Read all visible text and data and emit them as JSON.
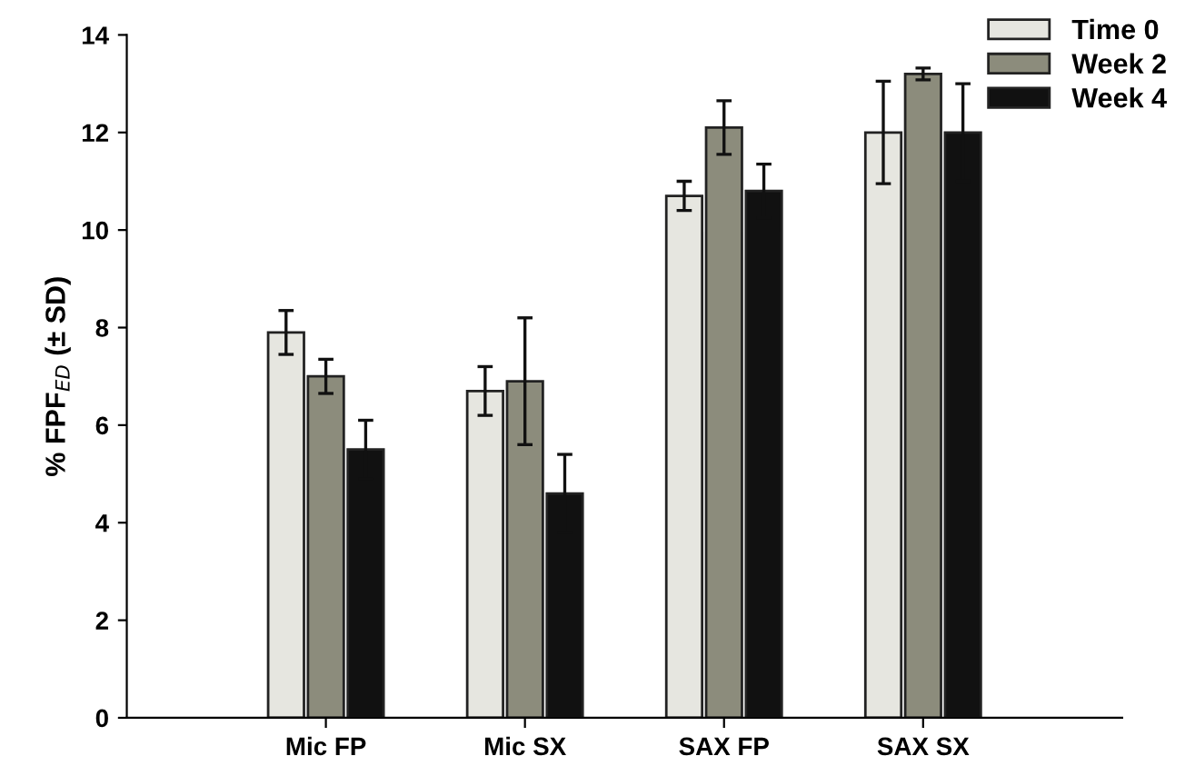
{
  "chart_data": {
    "type": "bar",
    "ylabel": "% FPF$_{ED}$ (± SD)",
    "categories": [
      "Mic FP",
      "Mic SX",
      "SAX FP",
      "SAX SX"
    ],
    "series": [
      {
        "name": "Time 0",
        "color": "#e6e6e0",
        "values": [
          7.9,
          6.7,
          10.7,
          12.0
        ],
        "errors": [
          0.45,
          0.5,
          0.3,
          1.05
        ]
      },
      {
        "name": "Week 2",
        "color": "#8c8c7c",
        "values": [
          7.0,
          6.9,
          12.1,
          13.2
        ],
        "errors": [
          0.35,
          1.3,
          0.55,
          0.12
        ]
      },
      {
        "name": "Week 4",
        "color": "#111111",
        "values": [
          5.5,
          4.6,
          10.8,
          12.0
        ],
        "errors": [
          0.6,
          0.8,
          0.55,
          1.0
        ]
      }
    ],
    "ylim": [
      0,
      14
    ],
    "yticks": [
      0,
      2,
      4,
      6,
      8,
      10,
      12,
      14
    ],
    "legend": "top right",
    "grid": false
  }
}
